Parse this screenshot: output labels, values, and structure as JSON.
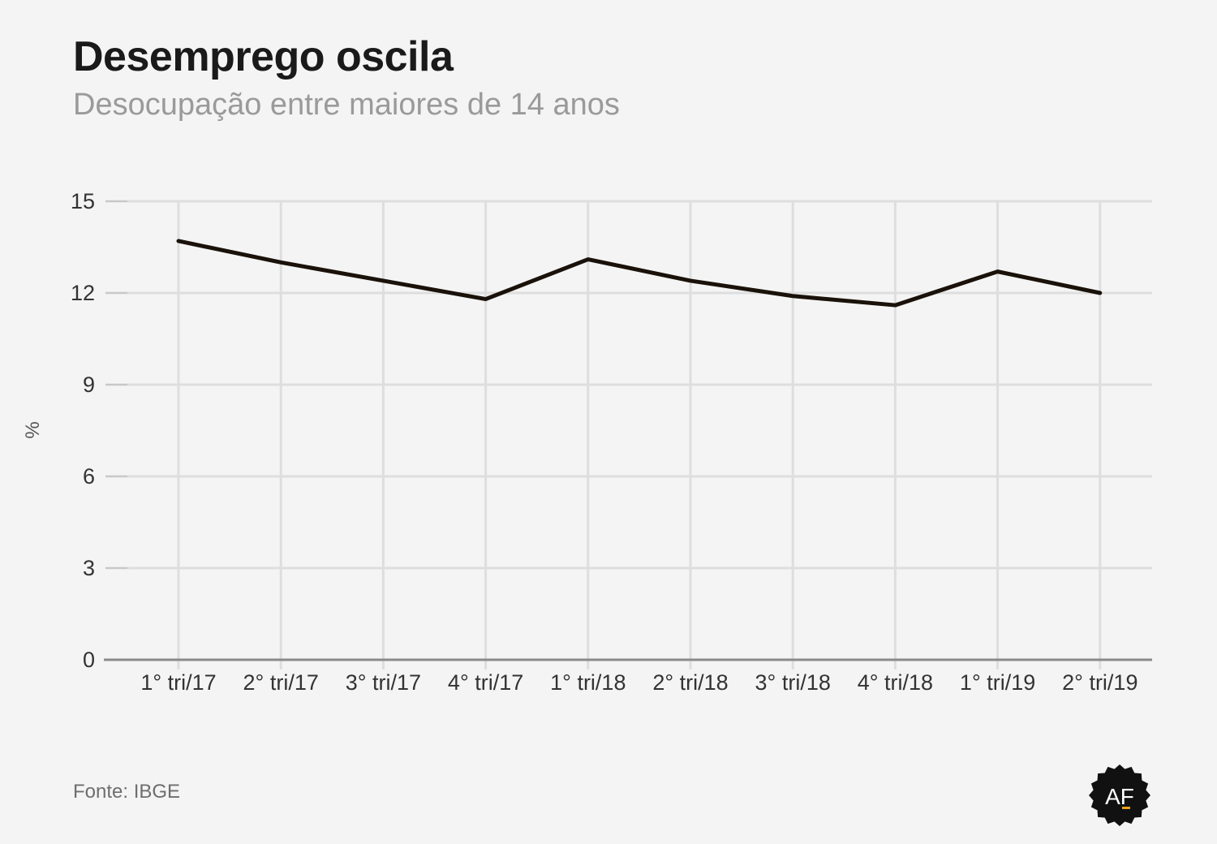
{
  "header": {
    "title": "Desemprego oscila",
    "subtitle": "Desocupação entre maiores de 14 anos"
  },
  "footer": {
    "source": "Fonte: IBGE",
    "logo_text": "AF",
    "logo_icon": "af-badge-icon"
  },
  "colors": {
    "background": "#f4f4f4",
    "line": "#1a120a",
    "grid": "#dedede",
    "axis": "#8a8a8a",
    "logo": "#111111",
    "logo_accent": "#e8a21f"
  },
  "chart_data": {
    "type": "line",
    "title": "Desemprego oscila",
    "subtitle": "Desocupação entre maiores de 14 anos",
    "xlabel": "",
    "ylabel": "%",
    "categories": [
      "1° tri/17",
      "2° tri/17",
      "3° tri/17",
      "4° tri/17",
      "1° tri/18",
      "2° tri/18",
      "3° tri/18",
      "4° tri/18",
      "1° tri/19",
      "2° tri/19"
    ],
    "series": [
      {
        "values": [
          13.7,
          13.0,
          12.4,
          11.8,
          13.1,
          12.4,
          11.9,
          11.6,
          12.7,
          12.0
        ]
      }
    ],
    "ylim": [
      0,
      15
    ],
    "yticks": [
      0,
      3,
      6,
      9,
      12,
      15
    ],
    "grid": true,
    "legend": "none"
  }
}
